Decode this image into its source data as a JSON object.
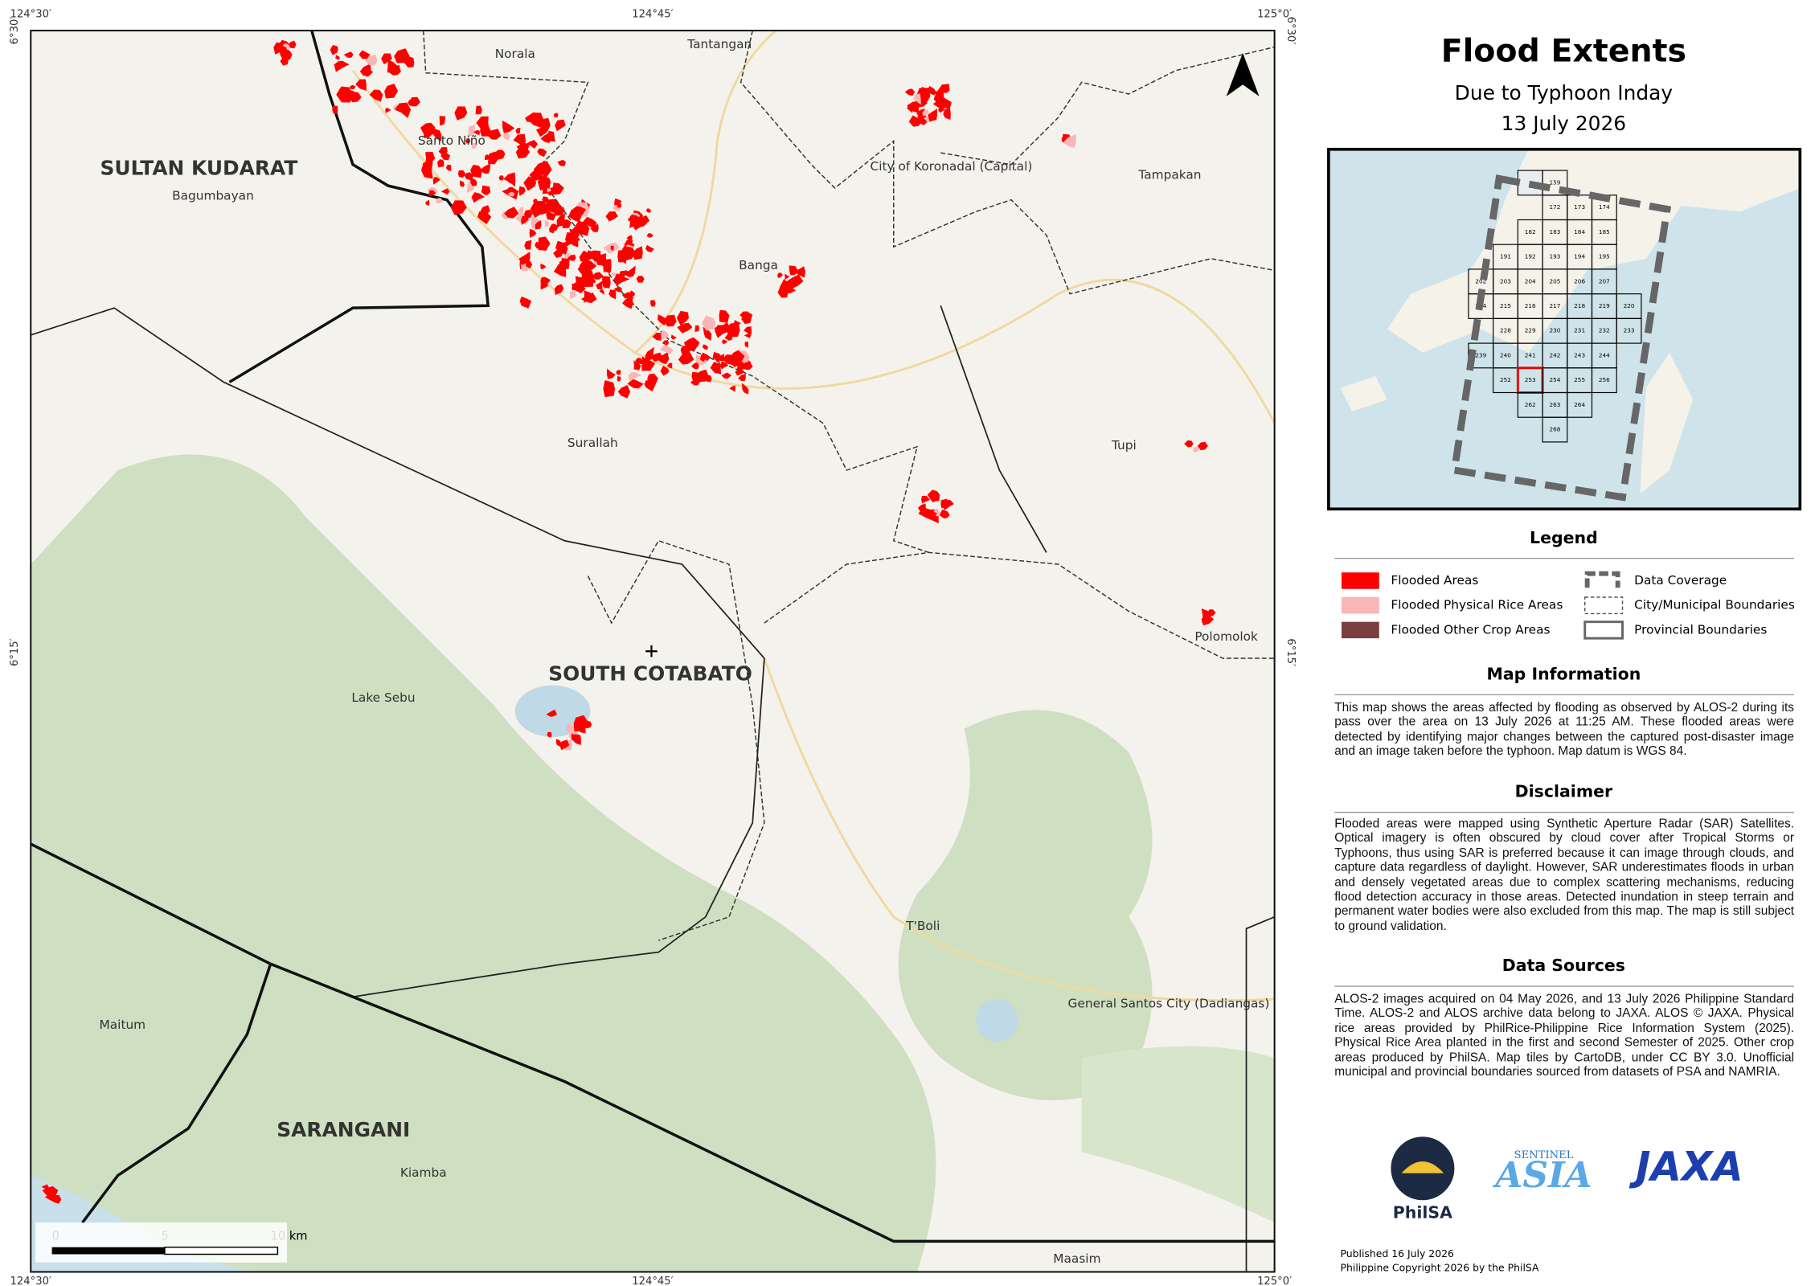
{
  "header": {
    "title": "Flood Extents",
    "subtitle": "Due to Typhoon Inday",
    "date": "13 July 2026"
  },
  "map": {
    "coordinates": {
      "longitudes": [
        "124°30′",
        "124°45′",
        "125°0′"
      ],
      "latitudes": [
        "6°30′",
        "6°15′"
      ]
    },
    "provinces": [
      "SULTAN KUDARAT",
      "SOUTH COTABATO",
      "SARANGANI"
    ],
    "places": [
      "Norala",
      "Tantangan",
      "Santo Niño",
      "City of Koronadal (Capital)",
      "Tampakan",
      "Bagumbayan",
      "Banga",
      "Surallah",
      "Tupi",
      "Polomolok",
      "Lake Sebu",
      "T'Boli",
      "General Santos City (Dadiangas)",
      "Maitum",
      "Kiamba",
      "Maasim"
    ],
    "scale_bar": [
      "0",
      "5",
      "10 km"
    ]
  },
  "inset": {
    "tiles": [
      "159",
      "172",
      "173",
      "174",
      "182",
      "183",
      "184",
      "185",
      "191",
      "192",
      "193",
      "194",
      "195",
      "202",
      "203",
      "204",
      "205",
      "206",
      "207",
      "214",
      "215",
      "216",
      "217",
      "218",
      "219",
      "220",
      "228",
      "229",
      "230",
      "231",
      "232",
      "233",
      "239",
      "240",
      "241",
      "242",
      "243",
      "244",
      "252",
      "253",
      "254",
      "255",
      "256",
      "262",
      "263",
      "264",
      "268"
    ]
  },
  "legend": {
    "title": "Legend",
    "items": [
      {
        "label": "Flooded Areas",
        "color": "#ff0000"
      },
      {
        "label": "Flooded Physical Rice Areas",
        "color": "#f9b6b6"
      },
      {
        "label": "Flooded Other Crop Areas",
        "color": "#7b3f3f"
      },
      {
        "label": "Data Coverage"
      },
      {
        "label": "City/Municipal Boundaries"
      },
      {
        "label": "Provincial Boundaries"
      }
    ]
  },
  "sections": [
    {
      "title": "Map Information",
      "text": "This map shows the areas affected by flooding as observed by ALOS-2 during its pass over the area on 13 July 2026 at 11:25 AM. These flooded areas were detected by identifying major changes between the captured post-disaster image and an image taken before the typhoon. Map datum is WGS 84."
    },
    {
      "title": "Disclaimer",
      "text": "Flooded areas were mapped using Synthetic Aperture Radar (SAR) Satellites. Optical imagery is often obscured by cloud cover after Tropical Storms or Typhoons, thus using SAR is preferred because it can image through clouds, and capture data regardless of daylight. However, SAR underestimates floods in urban and densely vegetated areas due to complex scattering mechanisms, reducing flood detection accuracy in those areas. Detected inundation in steep terrain and permanent water bodies were also excluded from this map. The map is still subject to ground validation."
    },
    {
      "title": "Data Sources",
      "text": "ALOS-2 images acquired on 04 May 2026, and 13 July 2026 Philippine Standard Time. ALOS-2 and ALOS archive data belong to JAXA. ALOS © JAXA. Physical rice areas provided by PhilRice-Philippine Rice Information System (2025). Physical Rice Area planted in the first and second Semester of 2025. Other crop areas produced by PhilSA. Map tiles by CartoDB, under CC BY 3.0. Unofficial municipal and provincial boundaries sourced from datasets of PSA and NAMRIA."
    }
  ],
  "logos": {
    "philsa": "PhilSA",
    "sentinel": "SENTINEL",
    "asia": "ASIA",
    "jaxa": "JAXA"
  },
  "footer": [
    "Published 16 July 2026",
    "Philippine Copyright 2026 by the PhilSA"
  ]
}
